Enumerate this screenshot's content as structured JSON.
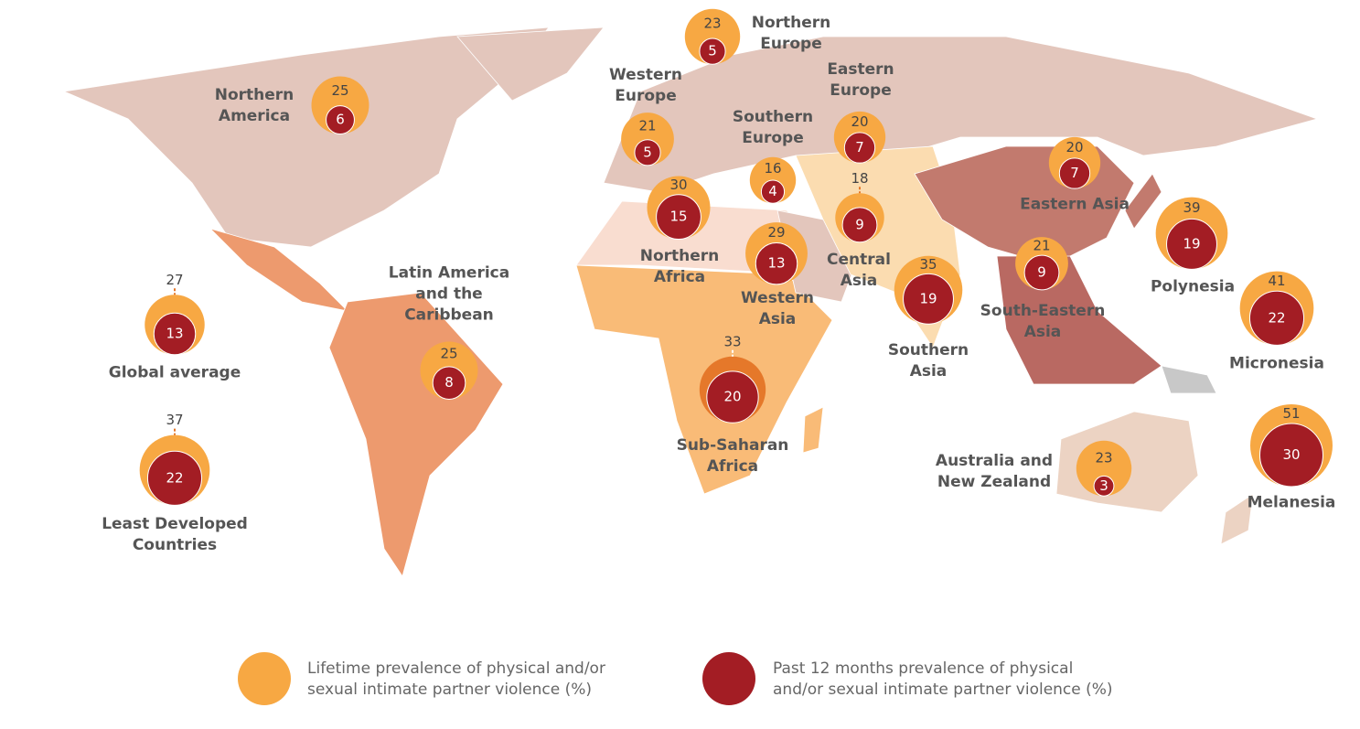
{
  "colors": {
    "lifetime": "#f7a843",
    "lifetime_highlight": "#e5782a",
    "past_12_months": "#a31d24"
  },
  "regions": [
    {
      "name": "Northern America",
      "lifetime": 25,
      "past_12_months": 6
    },
    {
      "name": "Northern Europe",
      "lifetime": 23,
      "past_12_months": 5
    },
    {
      "name": "Western Europe",
      "lifetime": 21,
      "past_12_months": 5
    },
    {
      "name": "Southern Europe",
      "lifetime": 16,
      "past_12_months": 4
    },
    {
      "name": "Eastern Europe",
      "lifetime": 20,
      "past_12_months": 7
    },
    {
      "name": "Central Asia",
      "lifetime": 18,
      "past_12_months": 9
    },
    {
      "name": "Eastern Asia",
      "lifetime": 20,
      "past_12_months": 7
    },
    {
      "name": "Northern Africa",
      "lifetime": 30,
      "past_12_months": 15
    },
    {
      "name": "Western Asia",
      "lifetime": 29,
      "past_12_months": 13
    },
    {
      "name": "Southern Asia",
      "lifetime": 35,
      "past_12_months": 19
    },
    {
      "name": "South-Eastern Asia",
      "lifetime": 21,
      "past_12_months": 9
    },
    {
      "name": "Polynesia",
      "lifetime": 39,
      "past_12_months": 19
    },
    {
      "name": "Micronesia",
      "lifetime": 41,
      "past_12_months": 22
    },
    {
      "name": "Melanesia",
      "lifetime": 51,
      "past_12_months": 30
    },
    {
      "name": "Australia and New Zealand",
      "lifetime": 23,
      "past_12_months": 3
    },
    {
      "name": "Sub-Saharan Africa",
      "lifetime": 33,
      "past_12_months": 20,
      "highlighted": true
    },
    {
      "name": "Latin America and the Caribbean",
      "lifetime": 25,
      "past_12_months": 8
    },
    {
      "name": "Global average",
      "lifetime": 27,
      "past_12_months": 13
    },
    {
      "name": "Least Developed Countries",
      "lifetime": 37,
      "past_12_months": 22
    }
  ],
  "legend": {
    "lifetime": "Lifetime prevalence of physical and/or sexual intimate partner violence (%)",
    "past_12_months": "Past 12 months prevalence of physical and/or sexual intimate partner violence (%)"
  }
}
